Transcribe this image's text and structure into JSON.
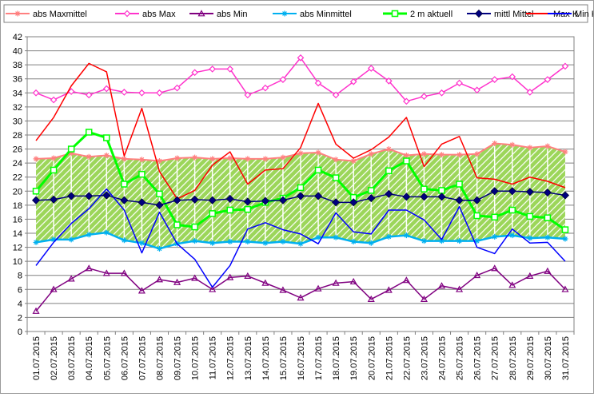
{
  "chart_data": {
    "type": "line",
    "categories": [
      "01.07.2015",
      "02.07.2015",
      "03.07.2015",
      "04.07.2015",
      "05.07.2015",
      "06.07.2015",
      "07.07.2015",
      "08.07.2015",
      "09.07.2015",
      "10.07.2015",
      "11.07.2015",
      "12.07.2015",
      "13.07.2015",
      "14.07.2015",
      "15.07.2015",
      "16.07.2015",
      "17.07.2015",
      "18.07.2015",
      "19.07.2015",
      "20.07.2015",
      "21.07.2015",
      "22.07.2015",
      "23.07.2015",
      "24.07.2015",
      "25.07.2015",
      "26.07.2015",
      "27.07.2015",
      "28.07.2015",
      "29.07.2015",
      "30.07.2015",
      "31.07.2015"
    ],
    "ylim": [
      0,
      42
    ],
    "yticks": [
      "0",
      "2",
      "4",
      "6",
      "8",
      "10",
      "12",
      "14",
      "16",
      "18",
      "20",
      "22",
      "24",
      "26",
      "28",
      "30",
      "32",
      "34",
      "36",
      "38",
      "40",
      "42"
    ],
    "grid": "horizontal",
    "legend_position": "top",
    "band": {
      "lower_series": "abs Minmittel",
      "upper_series": "abs Maxmittel",
      "fill": "#9cd65a",
      "pattern": "diagonal hatch"
    },
    "series": [
      {
        "name": "abs Maxmittel",
        "color": "#ff8080",
        "marker": "star",
        "values": [
          24.6,
          24.7,
          25.4,
          24.9,
          25.1,
          24.6,
          24.5,
          24.3,
          24.7,
          24.8,
          24.6,
          24.7,
          24.6,
          24.6,
          24.8,
          25.4,
          25.5,
          24.5,
          24.3,
          25.3,
          26.0,
          25.1,
          25.3,
          25.2,
          25.2,
          25.3,
          26.8,
          26.6,
          26.2,
          26.4,
          25.6
        ]
      },
      {
        "name": "abs Max",
        "color": "#ff33cc",
        "marker": "diamond-open",
        "values": [
          34.0,
          33.0,
          34.2,
          33.7,
          34.6,
          34.1,
          34.0,
          34.0,
          34.7,
          36.9,
          37.4,
          37.4,
          33.7,
          34.7,
          35.9,
          39.0,
          35.4,
          33.7,
          35.6,
          37.5,
          35.7,
          32.8,
          33.5,
          34.0,
          35.4,
          34.4,
          35.9,
          36.3,
          34.1,
          35.9,
          37.8
        ]
      },
      {
        "name": "abs Min",
        "color": "#800080",
        "marker": "triangle-open",
        "values": [
          2.9,
          6.0,
          7.5,
          9.0,
          8.3,
          8.3,
          5.8,
          7.4,
          7.0,
          7.6,
          6.0,
          7.7,
          7.9,
          6.9,
          5.9,
          4.8,
          6.1,
          6.9,
          7.1,
          4.6,
          5.9,
          7.3,
          4.6,
          6.5,
          6.0,
          8.0,
          9.0,
          6.6,
          7.9,
          8.6,
          6.0
        ]
      },
      {
        "name": "abs Minmittel",
        "color": "#00b0f0",
        "marker": "star",
        "values": [
          12.7,
          13.1,
          13.1,
          13.8,
          14.1,
          13.0,
          12.6,
          11.8,
          12.5,
          12.9,
          12.6,
          12.8,
          12.8,
          12.6,
          12.8,
          12.5,
          13.4,
          13.4,
          12.8,
          12.6,
          13.5,
          13.7,
          12.9,
          12.9,
          12.9,
          12.9,
          13.5,
          13.7,
          13.3,
          13.4,
          13.2
        ]
      },
      {
        "name": "2 m aktuell",
        "color": "#00ff00",
        "marker": "square-open",
        "values": [
          20.0,
          23.0,
          26.0,
          28.4,
          27.6,
          21.0,
          22.4,
          19.6,
          15.2,
          14.9,
          16.8,
          17.3,
          17.4,
          18.4,
          19.0,
          20.5,
          23.0,
          21.9,
          19.1,
          20.1,
          22.9,
          24.3,
          20.3,
          20.1,
          21.0,
          16.5,
          16.3,
          17.3,
          16.4,
          16.2,
          14.5
        ]
      },
      {
        "name": "mittl Mittel",
        "color": "#00007f",
        "marker": "diamond-filled",
        "values": [
          18.7,
          18.8,
          19.3,
          19.3,
          19.4,
          18.7,
          18.4,
          18.0,
          18.7,
          18.8,
          18.7,
          18.9,
          18.5,
          18.6,
          18.7,
          19.3,
          19.3,
          18.4,
          18.4,
          19.0,
          19.6,
          19.2,
          19.2,
          19.2,
          18.7,
          18.7,
          20.0,
          20.0,
          19.9,
          19.8,
          19.4
        ]
      },
      {
        "name": "Max K",
        "color": "#ff0000",
        "marker": "none",
        "values": [
          27.2,
          30.5,
          35.0,
          38.2,
          37.0,
          25.0,
          31.8,
          22.8,
          18.9,
          20.1,
          23.7,
          25.6,
          21.0,
          23.0,
          23.2,
          26.2,
          32.5,
          26.7,
          24.7,
          25.9,
          27.7,
          30.5,
          23.5,
          26.7,
          27.8,
          21.9,
          21.7,
          21.0,
          22.0,
          21.4,
          20.5
        ]
      },
      {
        "name": "Min K",
        "color": "#0000ff",
        "marker": "none",
        "values": [
          9.4,
          12.7,
          15.4,
          17.5,
          20.3,
          17.3,
          11.2,
          17.0,
          12.5,
          10.3,
          6.3,
          9.4,
          14.6,
          15.5,
          14.5,
          13.9,
          12.5,
          16.9,
          14.2,
          13.9,
          17.3,
          17.3,
          15.9,
          13.1,
          17.8,
          12.0,
          11.1,
          14.6,
          12.6,
          12.7,
          10.0
        ]
      }
    ]
  }
}
